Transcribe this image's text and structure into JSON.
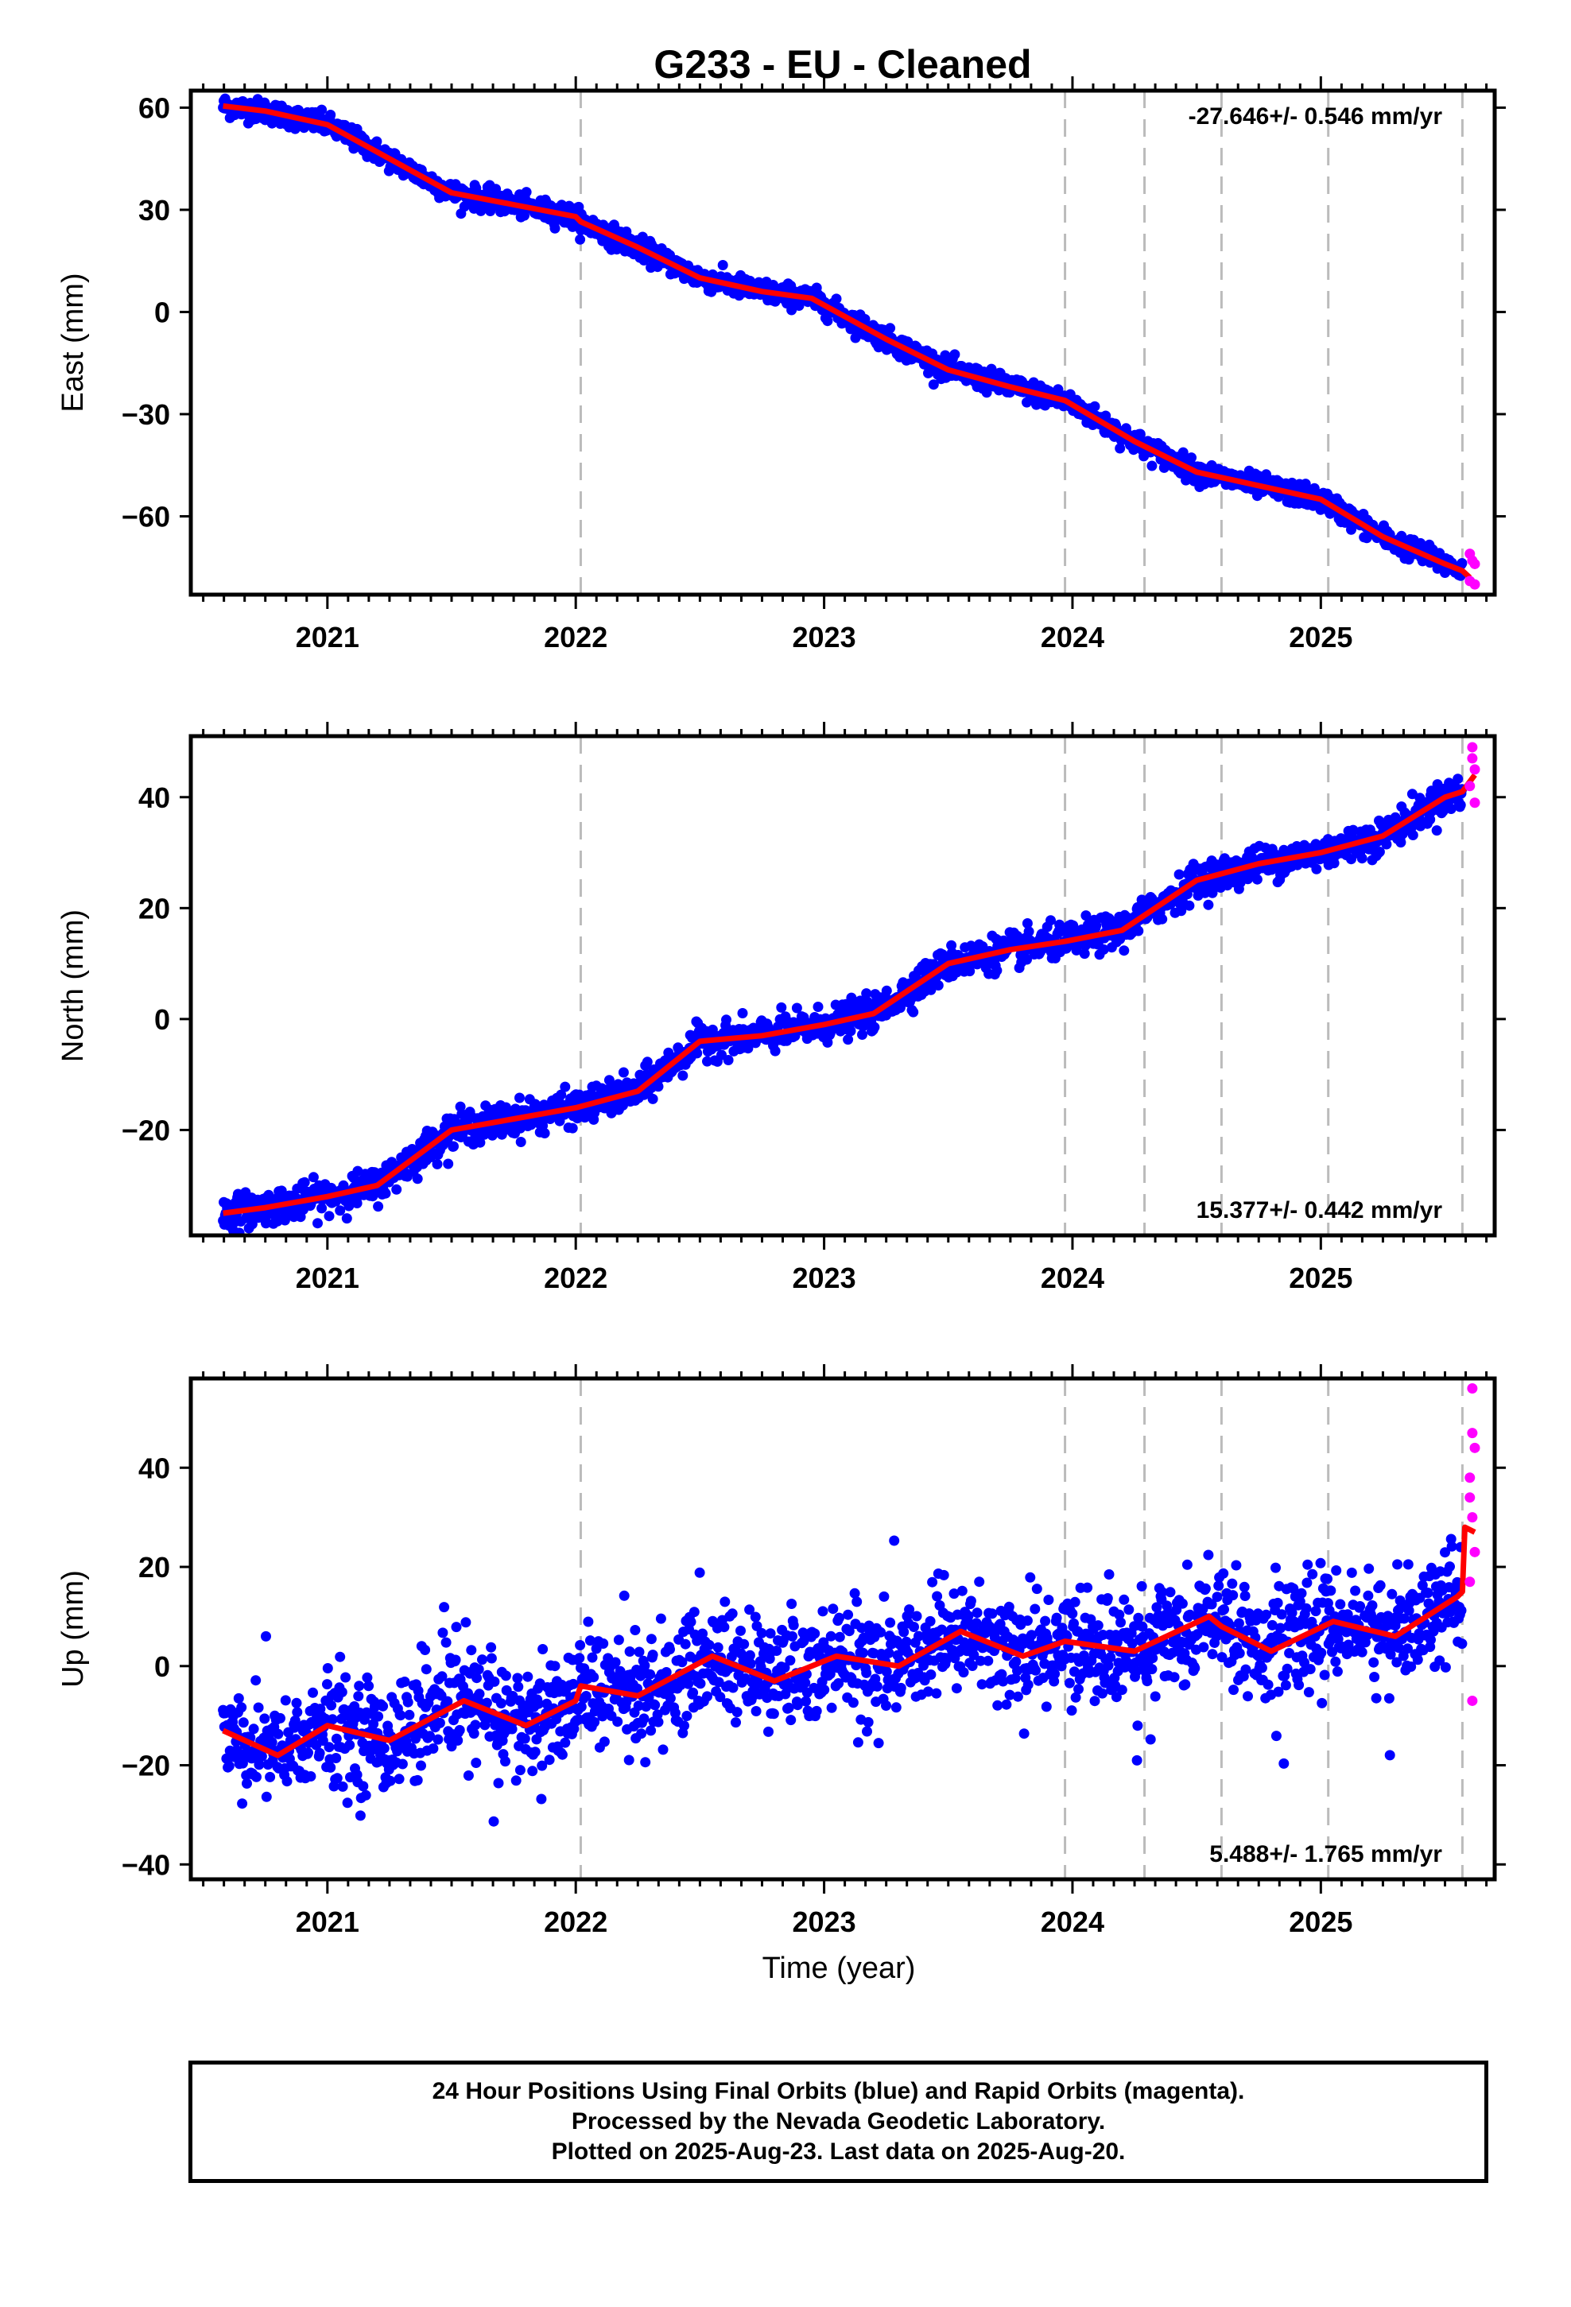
{
  "title": "G233  - EU - Cleaned",
  "xlabel": "Time (year)",
  "x_tick_labels": [
    "2021",
    "2022",
    "2023",
    "2024",
    "2025"
  ],
  "colors": {
    "final": "#0000ff",
    "rapid": "#ff00ff",
    "model": "#ff0000",
    "event": "#bbbbbb"
  },
  "footer": {
    "line1": "24 Hour Positions Using Final Orbits (blue) and Rapid Orbits (magenta).",
    "line2": "Processed by the Nevada Geodetic Laboratory.",
    "line3": "Plotted on 2025-Aug-23. Last data on 2025-Aug-20."
  },
  "chart_data": [
    {
      "type": "scatter",
      "ylabel": "East (mm)",
      "rate_label": "-27.646+/- 0.546 mm/yr",
      "rate_position": "top-right",
      "xlim": [
        2020.45,
        2025.7
      ],
      "ylim": [
        -83,
        65
      ],
      "yticks": [
        -60,
        -30,
        0,
        30,
        60
      ],
      "ytick_labels": [
        "−60",
        "−30",
        "0",
        "30",
        "60"
      ],
      "event_lines": [
        2022.02,
        2023.97,
        2024.29,
        2024.6,
        2025.03,
        2025.57
      ],
      "model_nodes": [
        [
          2020.58,
          60.5
        ],
        [
          2020.75,
          59
        ],
        [
          2021.0,
          55
        ],
        [
          2021.25,
          45
        ],
        [
          2021.5,
          35
        ],
        [
          2021.75,
          31.5
        ],
        [
          2022.0,
          28
        ],
        [
          2022.02,
          26.5
        ],
        [
          2022.25,
          19
        ],
        [
          2022.5,
          10
        ],
        [
          2022.75,
          6
        ],
        [
          2022.95,
          4
        ],
        [
          2023.25,
          -8
        ],
        [
          2023.5,
          -17
        ],
        [
          2023.75,
          -22
        ],
        [
          2023.97,
          -26
        ],
        [
          2024.25,
          -38
        ],
        [
          2024.5,
          -47
        ],
        [
          2024.75,
          -51
        ],
        [
          2025.0,
          -55
        ],
        [
          2025.25,
          -66
        ],
        [
          2025.5,
          -74
        ],
        [
          2025.57,
          -76
        ],
        [
          2025.6,
          -78
        ]
      ],
      "scatter_sigma": 1.6,
      "rapid_points": [
        [
          2025.6,
          -71
        ],
        [
          2025.61,
          -73
        ],
        [
          2025.62,
          -74
        ],
        [
          2025.6,
          -79
        ],
        [
          2025.62,
          -80
        ]
      ]
    },
    {
      "type": "scatter",
      "ylabel": "North (mm)",
      "rate_label": "15.377+/- 0.442 mm/yr",
      "rate_position": "bottom-right",
      "xlim": [
        2020.45,
        2025.7
      ],
      "ylim": [
        -39,
        51
      ],
      "yticks": [
        -20,
        0,
        20,
        40
      ],
      "ytick_labels": [
        "−20",
        "0",
        "20",
        "40"
      ],
      "event_lines": [
        2022.02,
        2023.97,
        2024.29,
        2024.6,
        2025.03,
        2025.57
      ],
      "model_nodes": [
        [
          2020.58,
          -35
        ],
        [
          2020.75,
          -34
        ],
        [
          2021.0,
          -32
        ],
        [
          2021.2,
          -30
        ],
        [
          2021.5,
          -20
        ],
        [
          2021.75,
          -18
        ],
        [
          2022.0,
          -16
        ],
        [
          2022.25,
          -13
        ],
        [
          2022.5,
          -4
        ],
        [
          2022.75,
          -3
        ],
        [
          2023.0,
          -1
        ],
        [
          2023.2,
          1
        ],
        [
          2023.5,
          10
        ],
        [
          2023.75,
          12.5
        ],
        [
          2023.97,
          14
        ],
        [
          2024.2,
          16
        ],
        [
          2024.5,
          25
        ],
        [
          2024.75,
          28
        ],
        [
          2025.0,
          30
        ],
        [
          2025.25,
          33
        ],
        [
          2025.5,
          40
        ],
        [
          2025.57,
          41
        ],
        [
          2025.62,
          44
        ]
      ],
      "scatter_sigma": 1.5,
      "rapid_points": [
        [
          2025.61,
          49
        ],
        [
          2025.61,
          47
        ],
        [
          2025.62,
          45
        ],
        [
          2025.6,
          42
        ],
        [
          2025.62,
          39
        ]
      ]
    },
    {
      "type": "scatter",
      "ylabel": "Up (mm)",
      "rate_label": "5.488+/- 1.765 mm/yr",
      "rate_position": "bottom-right",
      "xlim": [
        2020.45,
        2025.7
      ],
      "ylim": [
        -43,
        58
      ],
      "yticks": [
        -40,
        -20,
        0,
        20,
        40
      ],
      "ytick_labels": [
        "−40",
        "−20",
        "0",
        "20",
        "40"
      ],
      "event_lines": [
        2022.02,
        2023.97,
        2024.29,
        2024.6,
        2025.03,
        2025.57
      ],
      "model_nodes": [
        [
          2020.58,
          -13
        ],
        [
          2020.8,
          -18
        ],
        [
          2021.0,
          -12
        ],
        [
          2021.25,
          -15
        ],
        [
          2021.55,
          -7
        ],
        [
          2021.8,
          -12
        ],
        [
          2022.0,
          -7
        ],
        [
          2022.02,
          -4
        ],
        [
          2022.25,
          -6
        ],
        [
          2022.55,
          2
        ],
        [
          2022.8,
          -3
        ],
        [
          2023.05,
          2
        ],
        [
          2023.3,
          0
        ],
        [
          2023.55,
          7
        ],
        [
          2023.8,
          2
        ],
        [
          2023.97,
          5
        ],
        [
          2024.25,
          3
        ],
        [
          2024.55,
          10
        ],
        [
          2024.6,
          8
        ],
        [
          2024.8,
          3
        ],
        [
          2025.05,
          9
        ],
        [
          2025.3,
          6
        ],
        [
          2025.55,
          14
        ],
        [
          2025.57,
          15
        ],
        [
          2025.58,
          28
        ],
        [
          2025.62,
          27
        ]
      ],
      "scatter_sigma": 5.5,
      "rapid_points": [
        [
          2025.61,
          56
        ],
        [
          2025.61,
          47
        ],
        [
          2025.62,
          44
        ],
        [
          2025.6,
          38
        ],
        [
          2025.6,
          34
        ],
        [
          2025.61,
          30
        ],
        [
          2025.62,
          23
        ],
        [
          2025.6,
          17
        ],
        [
          2025.61,
          -7
        ]
      ]
    }
  ]
}
